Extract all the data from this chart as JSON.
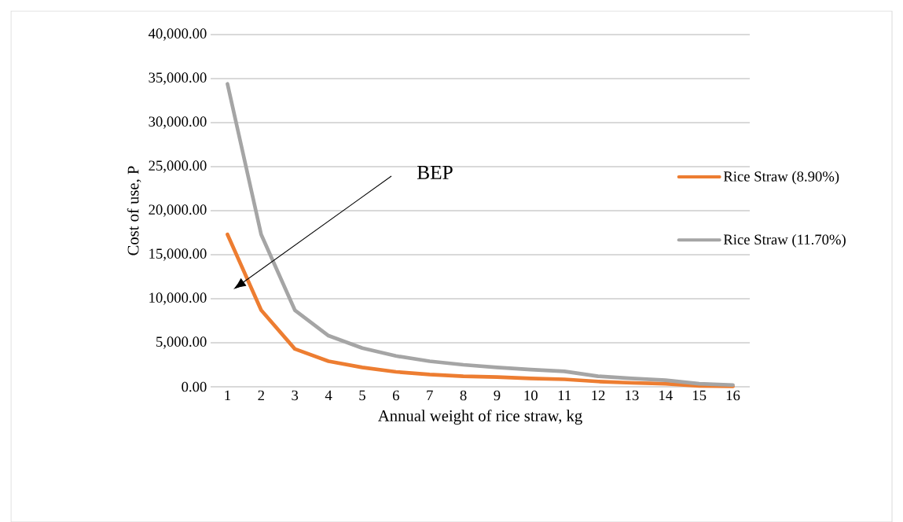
{
  "chart_data": {
    "type": "line",
    "xlabel": "Annual weight of rice straw, kg",
    "ylabel": "Cost of use, P",
    "categories": [
      "1",
      "2",
      "3",
      "4",
      "5",
      "6",
      "7",
      "8",
      "9",
      "10",
      "11",
      "12",
      "13",
      "14",
      "15",
      "16"
    ],
    "series": [
      {
        "name": "Rice Straw (8.90%)",
        "color": "#ed7d31",
        "values": [
          17300,
          8700,
          4300,
          2900,
          2200,
          1700,
          1400,
          1200,
          1100,
          950,
          850,
          600,
          450,
          350,
          100,
          50
        ]
      },
      {
        "name": "Rice Straw (11.70%)",
        "color": "#a5a5a5",
        "values": [
          34400,
          17300,
          8700,
          5800,
          4400,
          3500,
          2900,
          2500,
          2200,
          1950,
          1750,
          1200,
          950,
          750,
          350,
          200
        ]
      }
    ],
    "ylim": [
      0,
      40000
    ],
    "yticks": [
      {
        "value": 0,
        "label": "0.00"
      },
      {
        "value": 5000,
        "label": "5,000.00"
      },
      {
        "value": 10000,
        "label": "10,000.00"
      },
      {
        "value": 15000,
        "label": "15,000.00"
      },
      {
        "value": 20000,
        "label": "20,000.00"
      },
      {
        "value": 25000,
        "label": "25,000.00"
      },
      {
        "value": 30000,
        "label": "30,000.00"
      },
      {
        "value": 35000,
        "label": "35,000.00"
      },
      {
        "value": 40000,
        "label": "40,000.00"
      }
    ],
    "grid": "y",
    "legend": "right",
    "marker": "none",
    "line_style": "solid",
    "annotations": [
      "BEP"
    ]
  }
}
